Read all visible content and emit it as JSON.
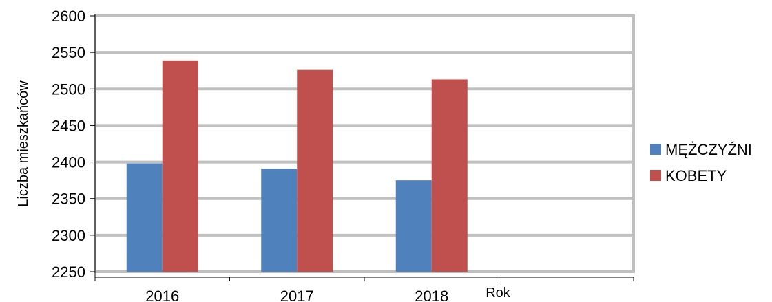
{
  "chart_data": {
    "type": "bar",
    "categories": [
      "2016",
      "2017",
      "2018",
      ""
    ],
    "series": [
      {
        "name": "MĘŻCZYŹNI",
        "values": [
          2398,
          2391,
          2375,
          null
        ],
        "color": "#4F81BD"
      },
      {
        "name": "KOBETY",
        "values": [
          2539,
          2526,
          2513,
          null
        ],
        "color": "#C0504D"
      }
    ],
    "title": "",
    "xlabel": "Rok",
    "ylabel": "Liczba mieszkańców",
    "ylim": [
      2250,
      2600
    ],
    "yticks": [
      2250,
      2300,
      2350,
      2400,
      2450,
      2500,
      2550,
      2600
    ],
    "grid": true,
    "grid_color": "#bfbfbf",
    "legend_position": "right"
  }
}
